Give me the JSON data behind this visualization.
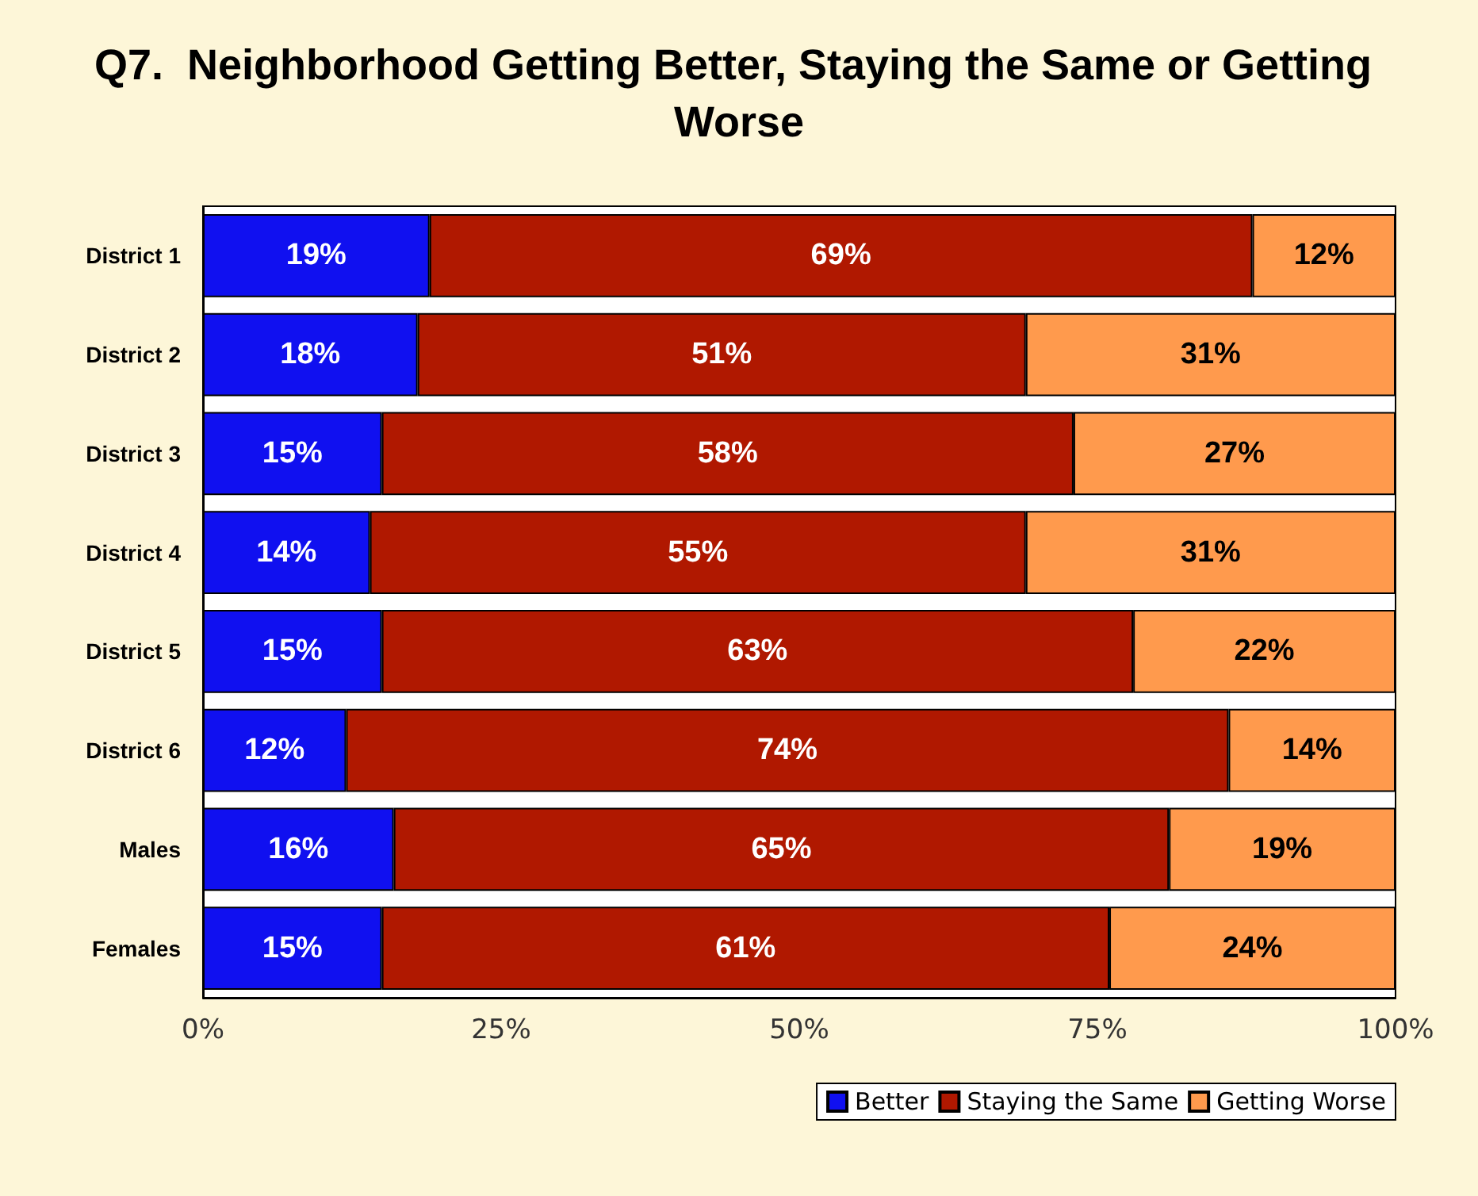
{
  "chart_data": {
    "type": "bar",
    "title": "Q7.  Neighborhood Getting Better, Staying the Same or Getting Worse",
    "orientation": "horizontal",
    "stacked": true,
    "categories": [
      "District 1",
      "District 2",
      "District 3",
      "District 4",
      "District 5",
      "District 6",
      "Males",
      "Females"
    ],
    "series": [
      {
        "name": "Better",
        "color": "#1010f0",
        "values": [
          19,
          18,
          15,
          14,
          15,
          12,
          16,
          15
        ],
        "value_labels": [
          "19%",
          "18%",
          "15%",
          "14%",
          "15%",
          "12%",
          "16%",
          "15%"
        ]
      },
      {
        "name": "Staying the Same",
        "color": "#b01800",
        "values": [
          69,
          51,
          58,
          55,
          63,
          74,
          65,
          61
        ],
        "value_labels": [
          "69%",
          "51%",
          "58%",
          "55%",
          "63%",
          "74%",
          "65%",
          "61%"
        ]
      },
      {
        "name": "Getting Worse",
        "color": "#ff9a4d",
        "values": [
          12,
          31,
          27,
          31,
          22,
          14,
          19,
          24
        ],
        "value_labels": [
          "12%",
          "31%",
          "27%",
          "31%",
          "22%",
          "14%",
          "19%",
          "24%"
        ]
      }
    ],
    "xlim": [
      0,
      100
    ],
    "xticks": [
      {
        "value": 0,
        "label": "0%"
      },
      {
        "value": 25,
        "label": "25%"
      },
      {
        "value": 50,
        "label": "50%"
      },
      {
        "value": 75,
        "label": "75%"
      },
      {
        "value": 100,
        "label": "100%"
      }
    ],
    "grid": false,
    "legend": "bottom right"
  }
}
